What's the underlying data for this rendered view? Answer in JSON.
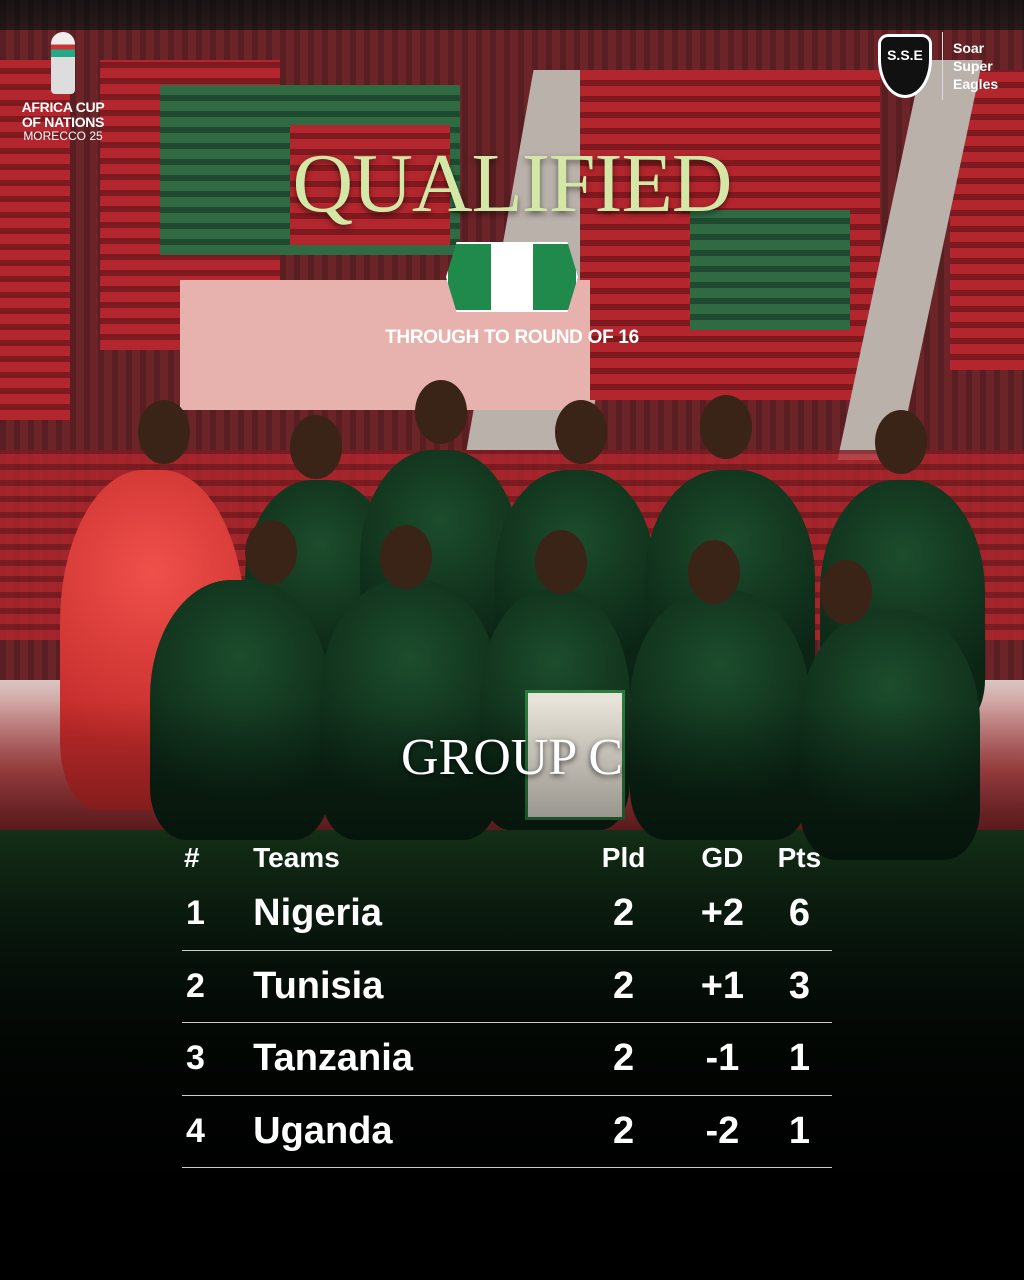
{
  "branding": {
    "afcon_logo": {
      "line1": "AFRICA CUP",
      "line2": "OF NATIONS",
      "line3": "MORECCO 25"
    },
    "sse_logo": {
      "shield": "S.S.E",
      "line1": "Soar",
      "line2": "Super",
      "line3": "Eagles"
    }
  },
  "headline": "QUALIFIED",
  "flag": {
    "country": "Nigeria",
    "colors": [
      "#1f8a4c",
      "#ffffff",
      "#1f8a4c"
    ]
  },
  "subtitle": "THROUGH TO ROUND OF 16",
  "group_title": "GROUP C",
  "table": {
    "headers": [
      "#",
      "Teams",
      "Pld",
      "GD",
      "Pts"
    ],
    "rows": [
      {
        "pos": "1",
        "team": "Nigeria",
        "pld": "2",
        "gd": "+2",
        "pts": "6"
      },
      {
        "pos": "2",
        "team": "Tunisia",
        "pld": "2",
        "gd": "+1",
        "pts": "3"
      },
      {
        "pos": "3",
        "team": "Tanzania",
        "pld": "2",
        "gd": "-1",
        "pts": "1"
      },
      {
        "pos": "4",
        "team": "Uganda",
        "pld": "2",
        "gd": "-2",
        "pts": "1"
      }
    ]
  },
  "colors": {
    "headline": "#d3e8a6",
    "jersey_green": "#1c4d2c",
    "keeper_red": "#e0443f"
  }
}
